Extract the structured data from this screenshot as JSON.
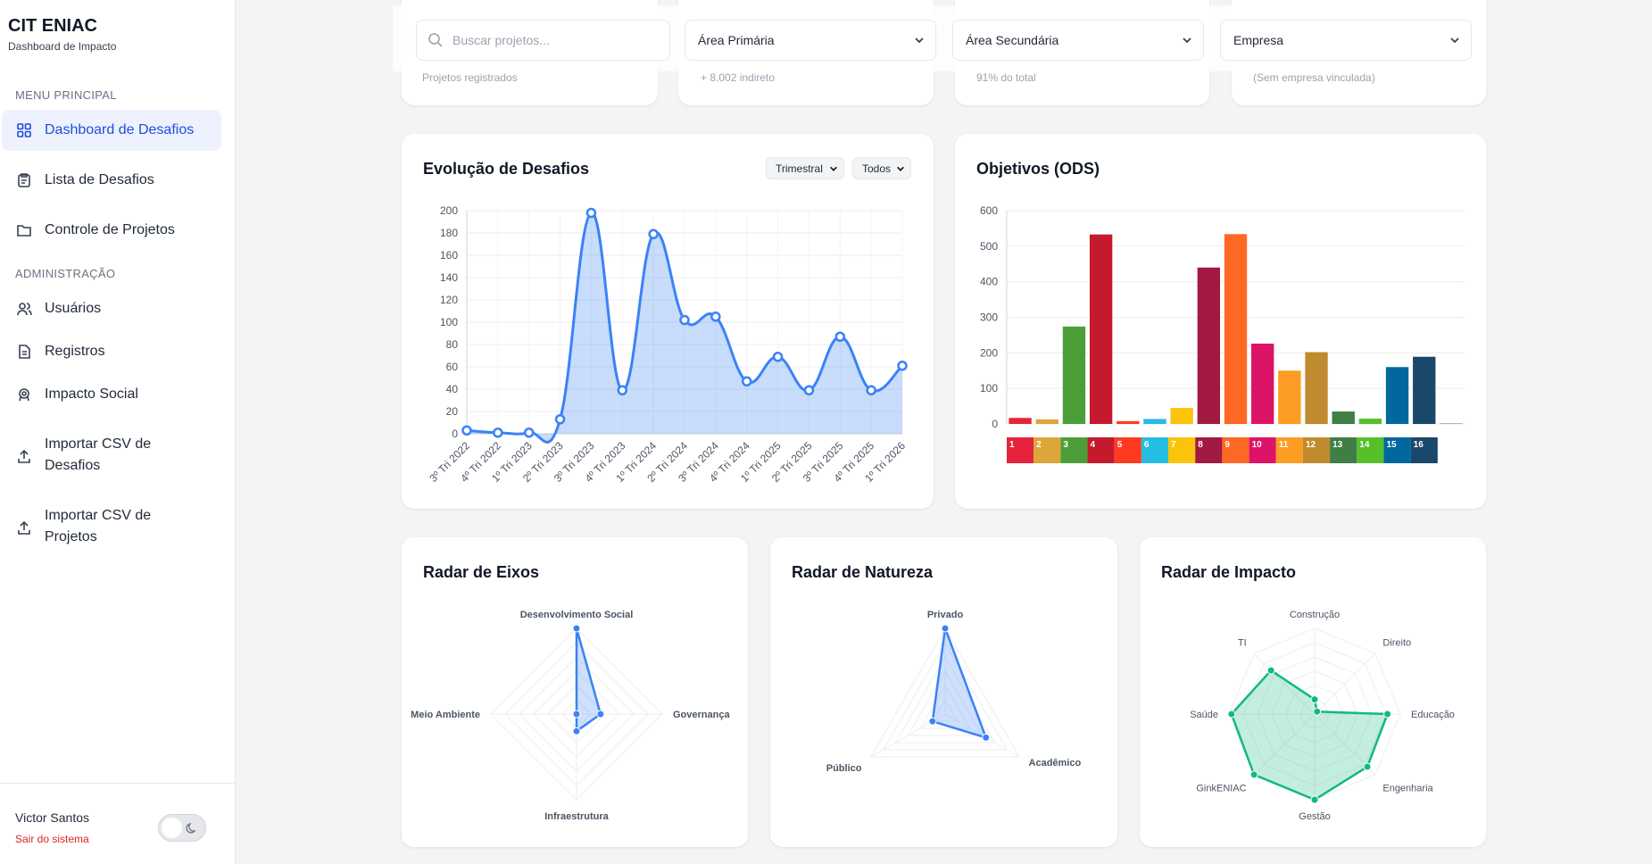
{
  "sidebar": {
    "brand": "CIT ENIAC",
    "subtitle": "Dashboard de Impacto",
    "sections": [
      {
        "title": "MENU PRINCIPAL",
        "items": [
          "Dashboard de Desafios",
          "Lista de Desafios",
          "Controle de Projetos"
        ]
      },
      {
        "title": "ADMINISTRAÇÃO",
        "items": [
          "Usuários",
          "Registros",
          "Impacto Social",
          "Importar CSV de Desafios",
          "Importar CSV de Projetos"
        ]
      }
    ],
    "user": "Victor Santos",
    "logout": "Sair do sistema"
  },
  "filters": {
    "search_placeholder": "Buscar projetos...",
    "selects": [
      "Área Primária",
      "Área Secundária",
      "Empresa"
    ]
  },
  "stat_cards": [
    "Projetos registrados",
    "+ 8.002 indireto",
    "91% do total",
    "(Sem empresa vinculada)"
  ],
  "chart_controls": [
    "Trimestral",
    "Todos"
  ],
  "chart_data": [
    {
      "type": "line",
      "title": "Evolução de Desafios",
      "categories": [
        "3º Tri 2022",
        "4º Tri 2022",
        "1º Tri 2023",
        "2º Tri 2023",
        "3º Tri 2023",
        "4º Tri 2023",
        "1º Tri 2024",
        "2º Tri 2024",
        "3º Tri 2024",
        "4º Tri 2024",
        "1º Tri 2025",
        "2º Tri 2025",
        "3º Tri 2025",
        "4º Tri 2025",
        "1º Tri 2026"
      ],
      "values": [
        3,
        1,
        1,
        13,
        198,
        39,
        179,
        102,
        105,
        47,
        69,
        39,
        87,
        39,
        61
      ],
      "color": "#3b82f6",
      "ylim": [
        0,
        200
      ],
      "yticks": [
        0,
        20,
        40,
        60,
        80,
        100,
        120,
        140,
        160,
        180,
        200
      ],
      "grid": true
    },
    {
      "type": "bar",
      "title": "Objetivos (ODS)",
      "categories": [
        "1",
        "2",
        "3",
        "4",
        "5",
        "6",
        "7",
        "8",
        "9",
        "10",
        "11",
        "12",
        "13",
        "14",
        "15",
        "16",
        null
      ],
      "values": [
        17,
        13,
        274,
        533,
        8,
        14,
        45,
        440,
        534,
        226,
        150,
        202,
        35,
        15,
        160,
        189,
        2
      ],
      "colors": [
        "#e5243b",
        "#dda63a",
        "#4c9f38",
        "#c5192d",
        "#ff3a21",
        "#26bde2",
        "#fcc30b",
        "#a21942",
        "#fd6925",
        "#dd1367",
        "#fd9d24",
        "#bf8b2e",
        "#3f7e44",
        "#56c02b",
        "#00689d",
        "#19486a",
        "#9ca3af"
      ],
      "ylim": [
        0,
        600
      ],
      "yticks": [
        0,
        100,
        200,
        300,
        400,
        500,
        600
      ],
      "grid": true
    },
    {
      "type": "radar",
      "title": "Radar de Eixos",
      "axes": [
        "Desenvolvimento Social",
        "Governança",
        "Infraestrutura",
        "Meio Ambiente"
      ],
      "values": [
        100,
        28,
        20,
        0
      ],
      "rlim": [
        0,
        100
      ],
      "color": "#3b82f6"
    },
    {
      "type": "radar",
      "title": "Radar de Natureza",
      "axes": [
        "Privado",
        "Acadêmico",
        "Público"
      ],
      "values": [
        100,
        55,
        17
      ],
      "rlim": [
        0,
        100
      ],
      "color": "#3b82f6"
    },
    {
      "type": "radar",
      "title": "Radar de Impacto",
      "axes": [
        "Construção",
        "Direito",
        "Educação",
        "Engenharia",
        "Gestão",
        "GinkENIAC",
        "Saúde",
        "TI"
      ],
      "values": [
        17,
        4,
        85,
        87,
        100,
        100,
        97,
        72
      ],
      "rlim": [
        0,
        100
      ],
      "color": "#10b981"
    }
  ]
}
